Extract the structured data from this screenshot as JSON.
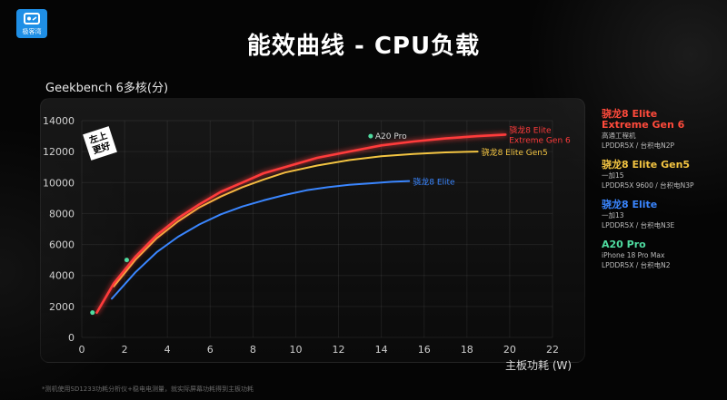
{
  "header": {
    "logo_text": "极客湾",
    "title": "能效曲线 - CPU负载"
  },
  "footnote": "*测机使用SD1233功耗分析仪+稳电电测量，就实际屏幕功耗得到主板功耗",
  "chart_data": {
    "type": "line",
    "ylabel": "Geekbench 6多核(分)",
    "xlabel": "主板功耗 (W)",
    "xlim": [
      0,
      22
    ],
    "ylim": [
      0,
      14000
    ],
    "xticks": [
      0,
      2,
      4,
      6,
      8,
      10,
      12,
      14,
      16,
      18,
      20,
      22
    ],
    "yticks": [
      0,
      2000,
      4000,
      6000,
      8000,
      10000,
      12000,
      14000
    ],
    "grid": true,
    "badge": "左上\n更好",
    "series": [
      {
        "name": "骁龙8 Elite\nExtreme Gen 6",
        "chart_label": "骁龙8 Elite\nExtreme Gen 6",
        "color": "#ff3b3b",
        "glow": true,
        "x": [
          0.7,
          1.5,
          2.5,
          3.5,
          4.5,
          5.5,
          6.5,
          7.5,
          8.5,
          9.5,
          11,
          12.5,
          14,
          15.5,
          17,
          18.5,
          19.8
        ],
        "y": [
          1600,
          3500,
          5200,
          6600,
          7700,
          8600,
          9400,
          10000,
          10600,
          11000,
          11600,
          12000,
          12400,
          12650,
          12850,
          13000,
          13100
        ]
      },
      {
        "name": "骁龙8 Elite Gen5",
        "chart_label": "骁龙8 Elite Gen5",
        "color": "#f4c542",
        "glow": false,
        "x": [
          1.5,
          2.5,
          3.5,
          4.5,
          5.5,
          6.5,
          7.5,
          8.5,
          9.5,
          11,
          12.5,
          14,
          15.5,
          17,
          18.5
        ],
        "y": [
          3300,
          5000,
          6400,
          7500,
          8400,
          9100,
          9700,
          10200,
          10650,
          11100,
          11450,
          11700,
          11850,
          11950,
          12000
        ]
      },
      {
        "name": "骁龙8 Elite",
        "chart_label": "骁龙8 Elite",
        "color": "#3a86ff",
        "glow": false,
        "x": [
          1.4,
          2.5,
          3.5,
          4.5,
          5.5,
          6.5,
          7.5,
          8.5,
          9.5,
          10.5,
          11.5,
          12.5,
          13.5,
          14.5,
          15.3
        ],
        "y": [
          2500,
          4200,
          5500,
          6500,
          7300,
          7950,
          8450,
          8850,
          9200,
          9500,
          9700,
          9850,
          9950,
          10050,
          10100
        ]
      }
    ],
    "points": [
      {
        "name": "A20 Pro",
        "label": "A20 Pro",
        "color": "#4fdba0",
        "x": 13.5,
        "y": 13000
      },
      {
        "name": "A20 Pro",
        "label": "",
        "color": "#4fdba0",
        "x": 2.1,
        "y": 5000
      },
      {
        "name": "A20 Pro",
        "label": "",
        "color": "#4fdba0",
        "x": 0.5,
        "y": 1600
      }
    ],
    "legend": [
      {
        "name": "骁龙8 Elite\nExtreme Gen 6",
        "color": "#ff4a3b",
        "sub": [
          "高通工程机",
          "LPDDR5X / 台积电N2P"
        ]
      },
      {
        "name": "骁龙8 Elite Gen5",
        "color": "#f4c542",
        "sub": [
          "一加15",
          "LPDDR5X 9600 / 台积电N3P"
        ]
      },
      {
        "name": "骁龙8 Elite",
        "color": "#3a86ff",
        "sub": [
          "一加13",
          "LPDDR5X / 台积电N3E"
        ]
      },
      {
        "name": "A20 Pro",
        "color": "#4fdba0",
        "sub": [
          "iPhone 18 Pro Max",
          "LPDDR5X / 台积电N2"
        ]
      }
    ]
  }
}
